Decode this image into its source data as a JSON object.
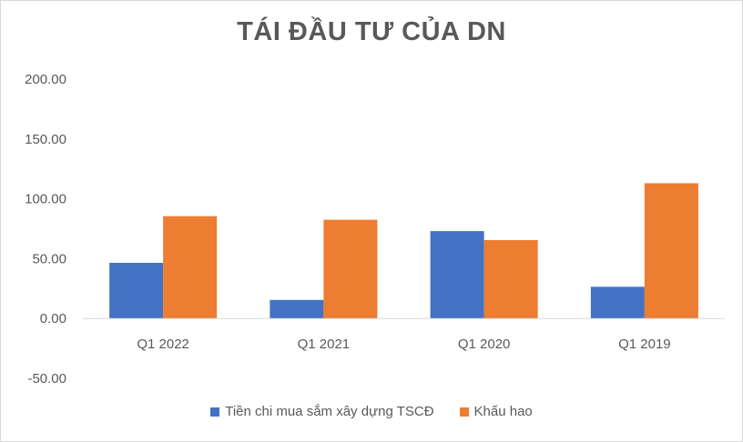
{
  "chart_data": {
    "type": "bar",
    "title": "TÁI ĐẦU TƯ CỦA DN",
    "categories": [
      "Q1 2022",
      "Q1 2021",
      "Q1 2020",
      "Q1 2019"
    ],
    "series": [
      {
        "name": "Tiền chi mua sắm xây dựng TSCĐ",
        "color": "#4472c4",
        "values": [
          46.5,
          15.5,
          73.0,
          26.5
        ]
      },
      {
        "name": "Khấu hao",
        "color": "#ed7d31",
        "values": [
          85.5,
          82.5,
          65.5,
          113.0
        ]
      }
    ],
    "yticks": [
      "200.00",
      "150.00",
      "100.00",
      "50.00",
      "0.00",
      "-50.00"
    ],
    "ylim": [
      -50,
      200
    ],
    "grid": false,
    "legend_position": "bottom"
  }
}
